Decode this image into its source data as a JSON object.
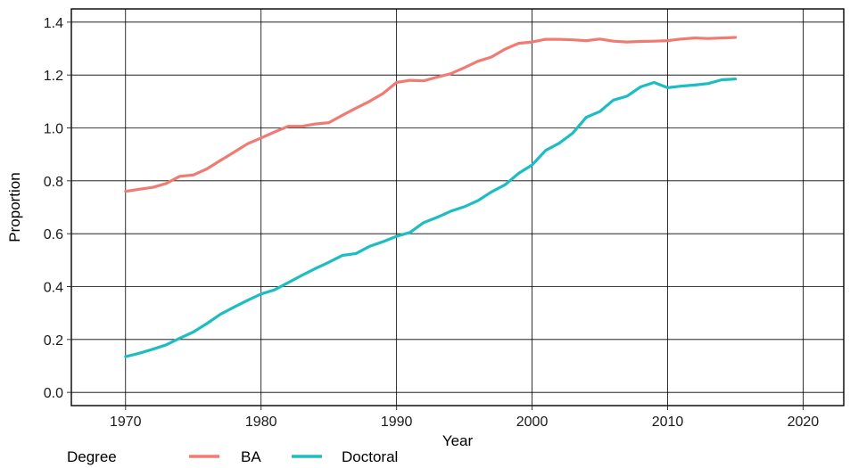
{
  "chart_data": {
    "type": "line",
    "xlabel": "Year",
    "ylabel": "Proportion",
    "xlim": [
      1966,
      2023
    ],
    "ylim": [
      -0.05,
      1.45
    ],
    "x_ticks": [
      1970,
      1980,
      1990,
      2000,
      2010,
      2020
    ],
    "y_ticks": [
      0.0,
      0.2,
      0.4,
      0.6,
      0.8,
      1.0,
      1.2,
      1.4
    ],
    "y_tick_labels": [
      "0.0",
      "0.2",
      "0.4",
      "0.6",
      "0.8",
      "1.0",
      "1.2",
      "1.4"
    ],
    "grid": true,
    "legend": {
      "title": "Degree",
      "position": "bottom"
    },
    "x": [
      1970,
      1971,
      1972,
      1973,
      1974,
      1975,
      1976,
      1977,
      1978,
      1979,
      1980,
      1981,
      1982,
      1983,
      1984,
      1985,
      1986,
      1987,
      1988,
      1989,
      1990,
      1991,
      1992,
      1993,
      1994,
      1995,
      1996,
      1997,
      1998,
      1999,
      2000,
      2001,
      2002,
      2003,
      2004,
      2005,
      2006,
      2007,
      2008,
      2009,
      2010,
      2011,
      2012,
      2013,
      2014,
      2015
    ],
    "series": [
      {
        "name": "BA",
        "color": "#f07b72",
        "values": [
          0.76,
          0.768,
          0.775,
          0.79,
          0.817,
          0.822,
          0.845,
          0.877,
          0.908,
          0.94,
          0.962,
          0.985,
          1.006,
          1.006,
          1.015,
          1.02,
          1.048,
          1.075,
          1.1,
          1.13,
          1.172,
          1.18,
          1.178,
          1.192,
          1.205,
          1.228,
          1.252,
          1.268,
          1.298,
          1.32,
          1.325,
          1.335,
          1.335,
          1.333,
          1.33,
          1.336,
          1.328,
          1.325,
          1.327,
          1.328,
          1.33,
          1.336,
          1.34,
          1.338,
          1.34,
          1.342
        ]
      },
      {
        "name": "Doctoral",
        "color": "#1ebdc1",
        "values": [
          0.135,
          0.148,
          0.163,
          0.18,
          0.205,
          0.228,
          0.26,
          0.295,
          0.322,
          0.348,
          0.372,
          0.388,
          0.415,
          0.442,
          0.468,
          0.492,
          0.518,
          0.525,
          0.552,
          0.57,
          0.59,
          0.605,
          0.642,
          0.662,
          0.685,
          0.702,
          0.725,
          0.758,
          0.785,
          0.828,
          0.86,
          0.915,
          0.942,
          0.98,
          1.04,
          1.062,
          1.105,
          1.12,
          1.155,
          1.172,
          1.152,
          1.158,
          1.162,
          1.168,
          1.182,
          1.185
        ]
      }
    ]
  }
}
